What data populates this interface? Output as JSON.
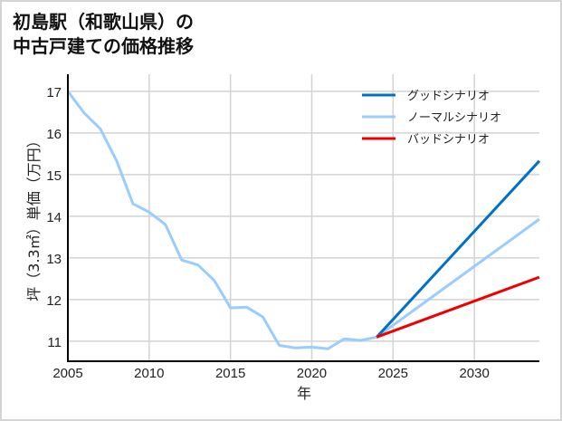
{
  "title": {
    "line1": "初島駅（和歌山県）の",
    "line2": "中古戸建ての価格推移"
  },
  "colors": {
    "good": "#0070c8",
    "normal": "#99ccff",
    "bad": "#ee0000",
    "grid": "#d3d3d3",
    "axis": "#000000"
  },
  "chart_data": {
    "type": "line",
    "title": "初島駅（和歌山県）の中古戸建ての価格推移",
    "xlabel": "年",
    "ylabel": "坪（3.3㎡）単価（万円）",
    "xlim": [
      2005,
      2034
    ],
    "ylim": [
      10.52,
      17.41
    ],
    "grid": true,
    "legend_position": "upper right",
    "xticks": [
      2005,
      2010,
      2015,
      2020,
      2025,
      2030
    ],
    "yticks": [
      11,
      12,
      13,
      14,
      15,
      16,
      17
    ],
    "series": [
      {
        "name": "ノーマルシナリオ",
        "color": "#99ccff",
        "x": [
          2005,
          2006,
          2007,
          2008,
          2009,
          2010,
          2011,
          2012,
          2013,
          2014,
          2015,
          2016,
          2017,
          2018,
          2019,
          2020,
          2021,
          2022,
          2023,
          2024,
          2034
        ],
        "values": [
          17.0,
          16.48,
          16.1,
          15.33,
          14.3,
          14.1,
          13.8,
          12.95,
          12.83,
          12.46,
          11.8,
          11.82,
          11.58,
          10.9,
          10.84,
          10.86,
          10.82,
          11.06,
          11.02,
          11.1,
          13.93
        ]
      },
      {
        "name": "グッドシナリオ",
        "color": "#0070c8",
        "x": [
          2024,
          2034
        ],
        "values": [
          11.1,
          15.33
        ]
      },
      {
        "name": "バッドシナリオ",
        "color": "#ee0000",
        "x": [
          2024,
          2034
        ],
        "values": [
          11.1,
          12.54
        ]
      }
    ]
  },
  "legend": [
    {
      "label": "グッドシナリオ",
      "color": "#0070c8"
    },
    {
      "label": "ノーマルシナリオ",
      "color": "#99ccff"
    },
    {
      "label": "バッドシナリオ",
      "color": "#ee0000"
    }
  ],
  "axes": {
    "xlabel": "年",
    "ylabel": "坪（3.3㎡）単価（万円）",
    "xticks": [
      "2005",
      "2010",
      "2015",
      "2020",
      "2025",
      "2030"
    ],
    "yticks": [
      "11",
      "12",
      "13",
      "14",
      "15",
      "16",
      "17"
    ]
  }
}
